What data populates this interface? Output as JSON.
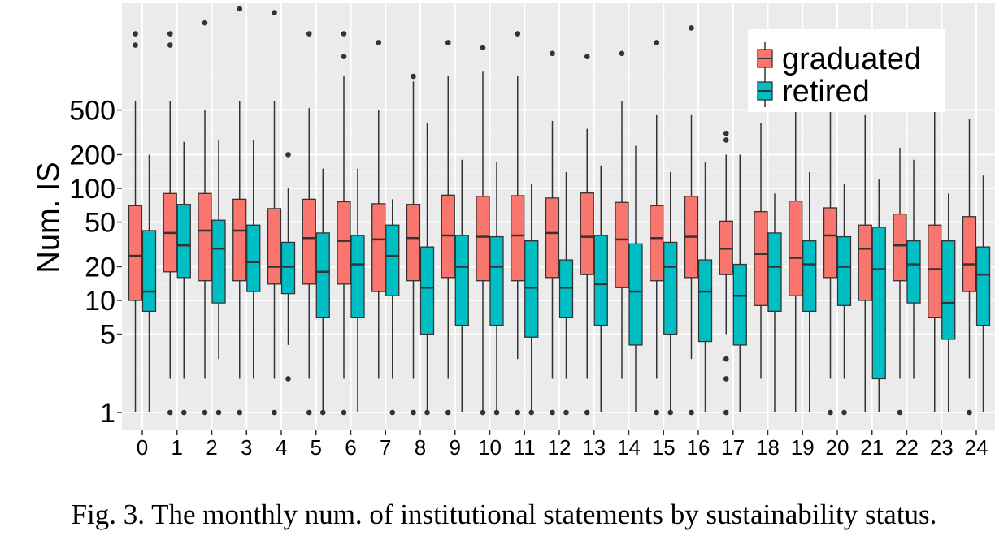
{
  "caption": "Fig. 3.  The monthly num. of institutional statements by sustainability status.",
  "chart_data": {
    "type": "box",
    "title": "",
    "xlabel": "",
    "ylabel": "Num. IS",
    "y_scale": "log10",
    "ylim": [
      0.8,
      5000
    ],
    "y_ticks": [
      1,
      5,
      10,
      20,
      50,
      100,
      200,
      500
    ],
    "categories": [
      "0",
      "1",
      "2",
      "3",
      "4",
      "5",
      "6",
      "7",
      "8",
      "9",
      "10",
      "11",
      "12",
      "13",
      "14",
      "15",
      "16",
      "17",
      "18",
      "19",
      "20",
      "21",
      "22",
      "23",
      "24"
    ],
    "grid": true,
    "legend_position": "top-right",
    "series": [
      {
        "name": "graduated",
        "color": "#F8766D",
        "boxes": [
          {
            "min": 1,
            "q1": 10,
            "median": 25,
            "q3": 70,
            "max": 600,
            "outliers": [
              1900,
              2400
            ]
          },
          {
            "min": 2,
            "q1": 18,
            "median": 40,
            "q3": 90,
            "max": 600,
            "outliers": [
              1,
              1900,
              2400
            ]
          },
          {
            "min": 2,
            "q1": 15,
            "median": 42,
            "q3": 90,
            "max": 500,
            "outliers": [
              1,
              3000
            ]
          },
          {
            "min": 2,
            "q1": 15,
            "median": 42,
            "q3": 80,
            "max": 600,
            "outliers": [
              1,
              4000
            ]
          },
          {
            "min": 2,
            "q1": 14,
            "median": 20,
            "q3": 66,
            "max": 600,
            "outliers": [
              1,
              3700
            ]
          },
          {
            "min": 2,
            "q1": 14,
            "median": 36,
            "q3": 80,
            "max": 520,
            "outliers": [
              1,
              2400
            ]
          },
          {
            "min": 2,
            "q1": 14,
            "median": 34,
            "q3": 76,
            "max": 1000,
            "outliers": [
              1,
              1500,
              2400
            ]
          },
          {
            "min": 2,
            "q1": 12,
            "median": 35,
            "q3": 73,
            "max": 500,
            "outliers": [
              2000
            ]
          },
          {
            "min": 2,
            "q1": 15,
            "median": 36,
            "q3": 72,
            "max": 900,
            "outliers": [
              1,
              1000
            ]
          },
          {
            "min": 2,
            "q1": 16,
            "median": 38,
            "q3": 87,
            "max": 1000,
            "outliers": [
              1,
              2000
            ]
          },
          {
            "min": 1,
            "q1": 15,
            "median": 37,
            "q3": 85,
            "max": 1100,
            "outliers": [
              1,
              1800
            ]
          },
          {
            "min": 3,
            "q1": 15,
            "median": 38,
            "q3": 86,
            "max": 1000,
            "outliers": [
              1,
              2400
            ]
          },
          {
            "min": 2,
            "q1": 16,
            "median": 40,
            "q3": 82,
            "max": 400,
            "outliers": [
              1,
              1600
            ]
          },
          {
            "min": 2,
            "q1": 17,
            "median": 37,
            "q3": 91,
            "max": 340,
            "outliers": [
              1,
              1500
            ]
          },
          {
            "min": 2,
            "q1": 13,
            "median": 35,
            "q3": 75,
            "max": 600,
            "outliers": [
              1600
            ]
          },
          {
            "min": 2,
            "q1": 15,
            "median": 36,
            "q3": 70,
            "max": 450,
            "outliers": [
              1,
              2000
            ]
          },
          {
            "min": 3,
            "q1": 16,
            "median": 37,
            "q3": 85,
            "max": 450,
            "outliers": [
              1,
              2700
            ]
          },
          {
            "min": 5,
            "q1": 17,
            "median": 29,
            "q3": 51,
            "max": 200,
            "outliers": [
              1,
              2,
              3,
              270,
              310
            ]
          },
          {
            "min": 2,
            "q1": 9,
            "median": 26,
            "q3": 62,
            "max": 380,
            "outliers": []
          },
          {
            "min": 1,
            "q1": 11,
            "median": 24,
            "q3": 77,
            "max": 500,
            "outliers": []
          },
          {
            "min": 2,
            "q1": 16,
            "median": 38,
            "q3": 67,
            "max": 600,
            "outliers": [
              1
            ]
          },
          {
            "min": 1,
            "q1": 10,
            "median": 29,
            "q3": 47,
            "max": 450,
            "outliers": []
          },
          {
            "min": 2,
            "q1": 15,
            "median": 31,
            "q3": 59,
            "max": 230,
            "outliers": [
              1
            ]
          },
          {
            "min": 1,
            "q1": 7,
            "median": 19,
            "q3": 47,
            "max": 500,
            "outliers": []
          },
          {
            "min": 2,
            "q1": 12,
            "median": 21,
            "q3": 56,
            "max": 420,
            "outliers": [
              1
            ]
          }
        ]
      },
      {
        "name": "retired",
        "color": "#00BFC4",
        "boxes": [
          {
            "min": 1,
            "q1": 8,
            "median": 12,
            "q3": 42,
            "max": 200,
            "outliers": []
          },
          {
            "min": 2,
            "q1": 16,
            "median": 31,
            "q3": 72,
            "max": 260,
            "outliers": [
              1
            ]
          },
          {
            "min": 3,
            "q1": 9.5,
            "median": 29,
            "q3": 52,
            "max": 270,
            "outliers": [
              1
            ]
          },
          {
            "min": 2,
            "q1": 12,
            "median": 22,
            "q3": 47,
            "max": 270,
            "outliers": []
          },
          {
            "min": 4,
            "q1": 11.5,
            "median": 20,
            "q3": 33,
            "max": 100,
            "outliers": [
              2,
              200
            ]
          },
          {
            "min": 1,
            "q1": 7,
            "median": 18,
            "q3": 40,
            "max": 150,
            "outliers": [
              1
            ]
          },
          {
            "min": 1,
            "q1": 7,
            "median": 21,
            "q3": 38,
            "max": 150,
            "outliers": []
          },
          {
            "min": 2,
            "q1": 11,
            "median": 25,
            "q3": 47,
            "max": 80,
            "outliers": [
              1
            ]
          },
          {
            "min": 1,
            "q1": 5,
            "median": 13,
            "q3": 30,
            "max": 380,
            "outliers": [
              1
            ]
          },
          {
            "min": 1,
            "q1": 6,
            "median": 20,
            "q3": 38,
            "max": 180,
            "outliers": []
          },
          {
            "min": 1,
            "q1": 6,
            "median": 20,
            "q3": 37,
            "max": 170,
            "outliers": [
              1
            ]
          },
          {
            "min": 1,
            "q1": 4.7,
            "median": 13,
            "q3": 34,
            "max": 110,
            "outliers": [
              1
            ]
          },
          {
            "min": 2,
            "q1": 7,
            "median": 13,
            "q3": 23,
            "max": 140,
            "outliers": [
              1
            ]
          },
          {
            "min": 1,
            "q1": 6,
            "median": 14,
            "q3": 38,
            "max": 160,
            "outliers": []
          },
          {
            "min": 1,
            "q1": 4,
            "median": 12,
            "q3": 32,
            "max": 240,
            "outliers": []
          },
          {
            "min": 1,
            "q1": 5,
            "median": 20,
            "q3": 33,
            "max": 140,
            "outliers": [
              1
            ]
          },
          {
            "min": 1,
            "q1": 4.3,
            "median": 12,
            "q3": 23,
            "max": 170,
            "outliers": []
          },
          {
            "min": 1,
            "q1": 4,
            "median": 11,
            "q3": 21,
            "max": 200,
            "outliers": []
          },
          {
            "min": 1,
            "q1": 8,
            "median": 20,
            "q3": 40,
            "max": 90,
            "outliers": []
          },
          {
            "min": 1,
            "q1": 8,
            "median": 21,
            "q3": 34,
            "max": 140,
            "outliers": []
          },
          {
            "min": 2,
            "q1": 9,
            "median": 20,
            "q3": 37,
            "max": 110,
            "outliers": [
              1
            ]
          },
          {
            "min": 1,
            "q1": 2,
            "median": 19,
            "q3": 45,
            "max": 120,
            "outliers": []
          },
          {
            "min": 2,
            "q1": 9.5,
            "median": 21,
            "q3": 34,
            "max": 180,
            "outliers": []
          },
          {
            "min": 1,
            "q1": 4.5,
            "median": 9.5,
            "q3": 34,
            "max": 90,
            "outliers": []
          },
          {
            "min": 1,
            "q1": 6,
            "median": 17,
            "q3": 30,
            "max": 130,
            "outliers": []
          }
        ]
      }
    ]
  }
}
